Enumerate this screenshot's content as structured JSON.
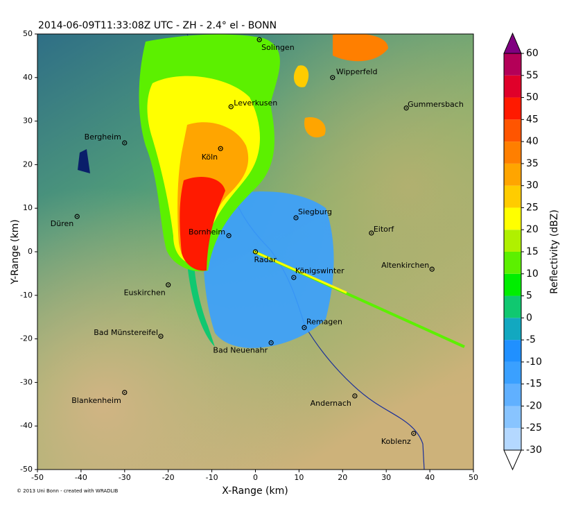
{
  "title": "2014-06-09T11:33:08Z UTC - ZH - 2.4° el - BONN",
  "x_label": "X-Range (km)",
  "y_label": "Y-Range (km)",
  "xlim": [
    -50,
    50
  ],
  "ylim": [
    -50,
    50
  ],
  "xticks": [
    -50,
    -40,
    -30,
    -20,
    -10,
    0,
    10,
    20,
    30,
    40,
    50
  ],
  "yticks": [
    -50,
    -40,
    -30,
    -20,
    -10,
    0,
    10,
    20,
    30,
    40,
    50
  ],
  "colorbar": {
    "label": "Reflectivity (dBZ)",
    "ticks": [
      -30,
      -25,
      -20,
      -15,
      -10,
      -5,
      0,
      5,
      10,
      15,
      20,
      25,
      30,
      35,
      40,
      45,
      50,
      55,
      60
    ],
    "colors": [
      "#b4d8ff",
      "#88c4ff",
      "#60b0ff",
      "#3aa0ff",
      "#2090ff",
      "#12a8c0",
      "#10c870",
      "#00ee00",
      "#5cf000",
      "#b0f000",
      "#ffff00",
      "#ffcc00",
      "#ffa500",
      "#ff7f00",
      "#ff5500",
      "#ff1a00",
      "#e0002a",
      "#b40058"
    ],
    "over_color": "#800080",
    "under_color": "#ffffff"
  },
  "places": [
    {
      "name": "Solingen",
      "x": 0.9,
      "y": 48.7
    },
    {
      "name": "Wipperfeld",
      "x": 17.7,
      "y": 40
    },
    {
      "name": "Leverkusen",
      "x": -5.6,
      "y": 33.3
    },
    {
      "name": "Gummersbach",
      "x": 34.6,
      "y": 33
    },
    {
      "name": "Bergheim",
      "x": -30,
      "y": 25
    },
    {
      "name": "Köln",
      "x": -8,
      "y": 23.7
    },
    {
      "name": "Düren",
      "x": -40.9,
      "y": 8.1
    },
    {
      "name": "Siegburg",
      "x": 9.3,
      "y": 7.8
    },
    {
      "name": "Eitorf",
      "x": 26.6,
      "y": 4.3
    },
    {
      "name": "Bornheim",
      "x": -6.1,
      "y": 3.7
    },
    {
      "name": "Radar",
      "x": 0,
      "y": 0
    },
    {
      "name": "Königswinter",
      "x": 8.8,
      "y": -5.9
    },
    {
      "name": "Altenkirchen",
      "x": 40.5,
      "y": -4
    },
    {
      "name": "Euskirchen",
      "x": -20,
      "y": -7.6
    },
    {
      "name": "Remagen",
      "x": 11.2,
      "y": -17.4
    },
    {
      "name": "Bad Münstereifel",
      "x": -21.7,
      "y": -19.4
    },
    {
      "name": "Bad Neuenahr",
      "x": 3.6,
      "y": -20.9
    },
    {
      "name": "Blankenheim",
      "x": -30,
      "y": -32.3
    },
    {
      "name": "Andernach",
      "x": 22.8,
      "y": -33.1
    },
    {
      "name": "Koblenz",
      "x": 36.3,
      "y": -41.7
    }
  ],
  "copyright": "© 2013 Uni Bonn - created with WRADLIB"
}
